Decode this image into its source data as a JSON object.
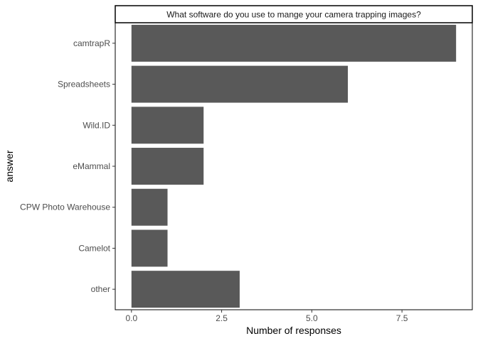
{
  "chart_data": {
    "type": "bar",
    "orientation": "horizontal",
    "facet_title": "What software do you use to mange your camera trapping images?",
    "categories": [
      "camtrapR",
      "Spreadsheets",
      "Wild.ID",
      "eMammal",
      "CPW Photo Warehouse",
      "Camelot",
      "other"
    ],
    "values": [
      9,
      6,
      2,
      2,
      1,
      1,
      3
    ],
    "xlabel": "Number of responses",
    "ylabel": "answer",
    "xlim": [
      -0.45,
      9.45
    ],
    "xticks": [
      0,
      2.5,
      5,
      7.5
    ],
    "xtick_labels": [
      "0.0",
      "2.5",
      "5.0",
      "7.5"
    ],
    "grid": false,
    "bar_color": "#595959"
  }
}
